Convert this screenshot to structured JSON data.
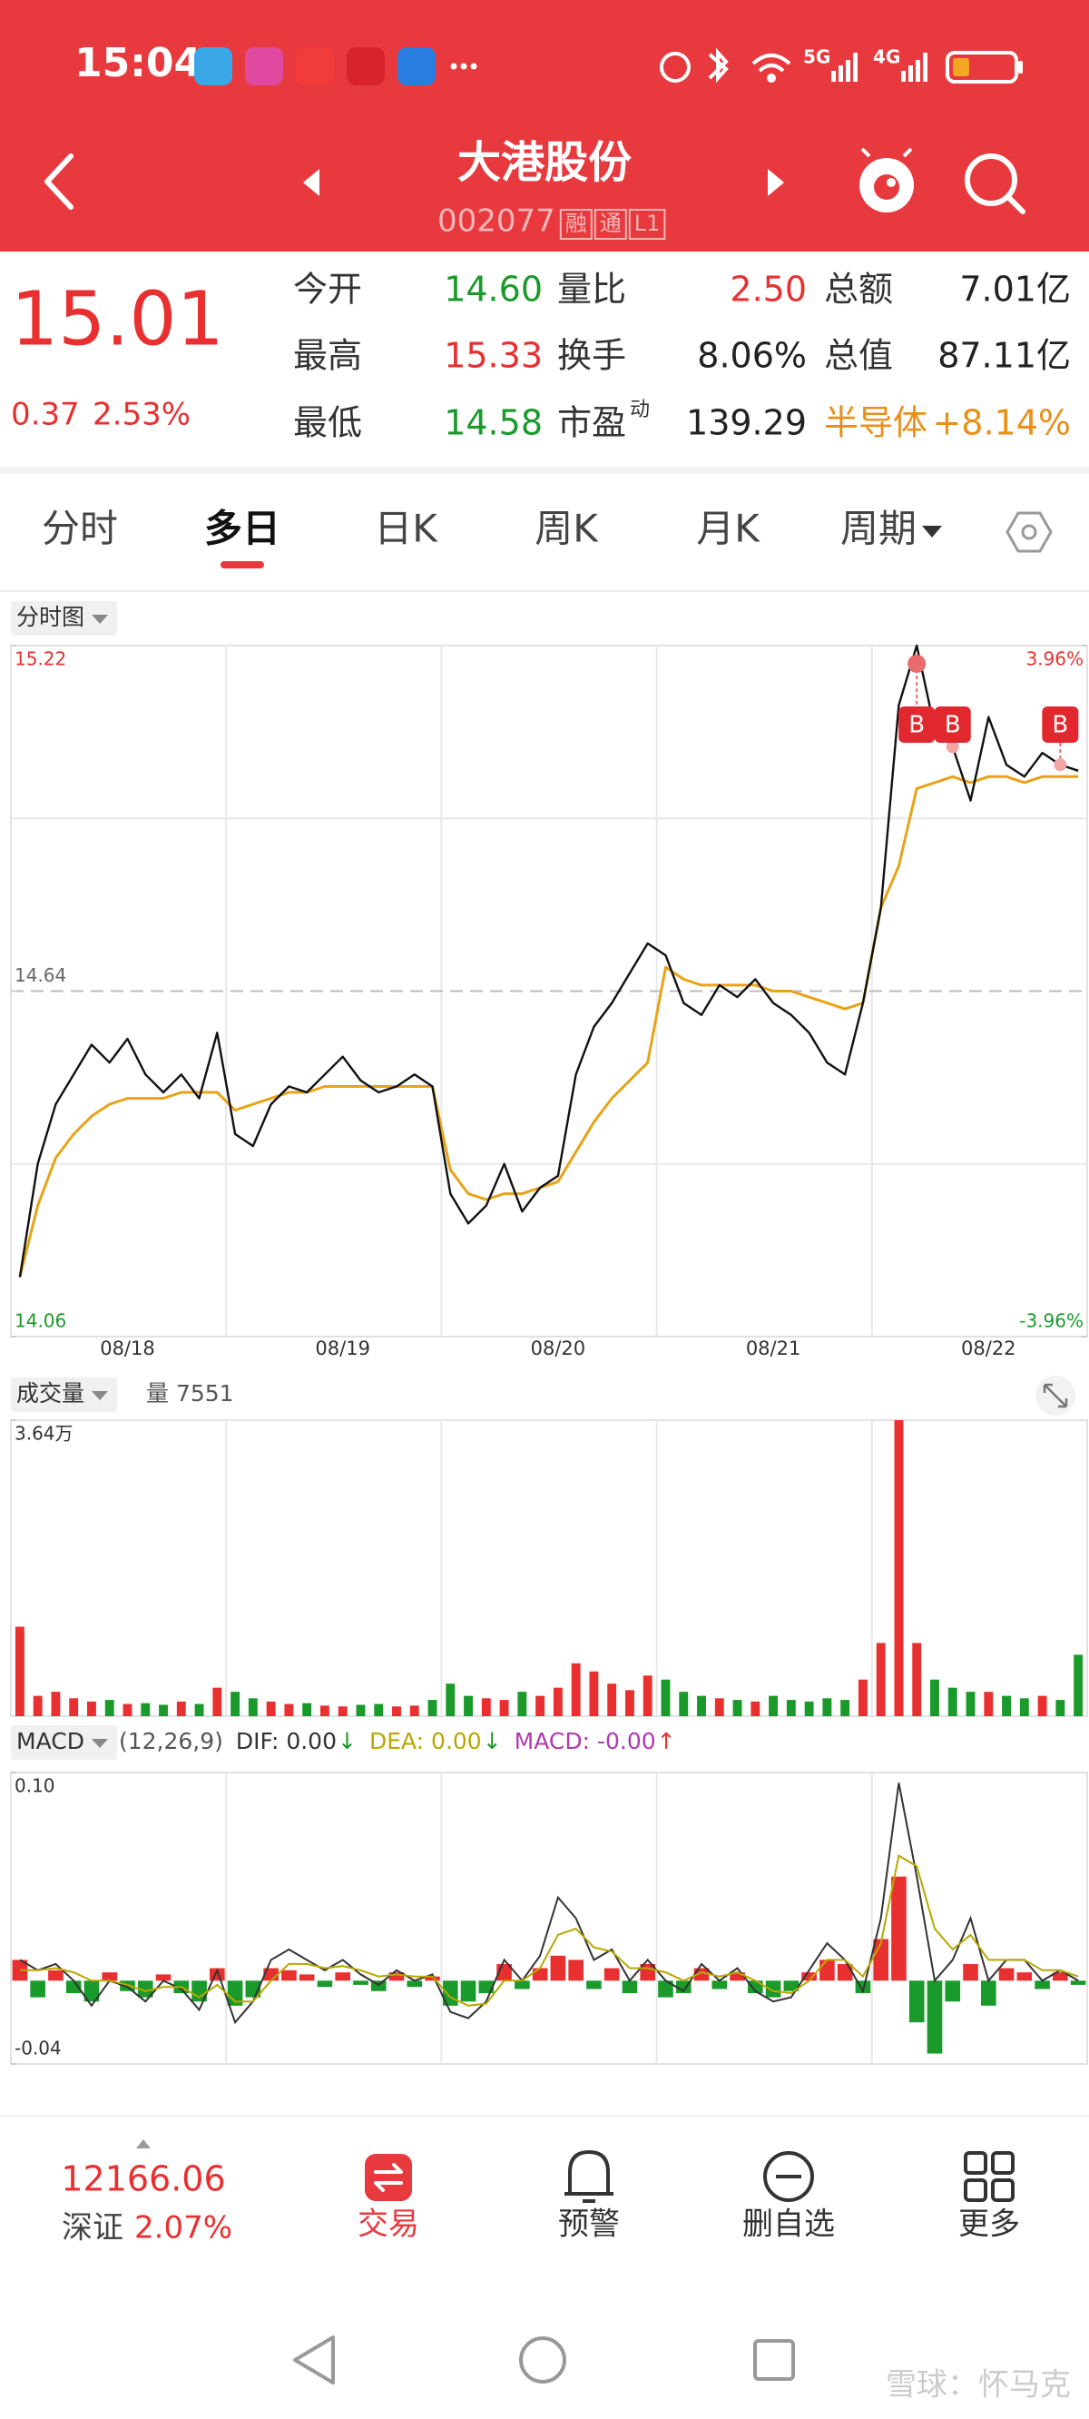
{
  "status_bar": {
    "time": "15:04",
    "network": [
      "5G",
      "4G"
    ]
  },
  "header": {
    "title": "大港股份",
    "code": "002077",
    "badges": [
      "融",
      "通",
      "L1"
    ]
  },
  "quote": {
    "price": "15.01",
    "change": "0.37",
    "change_pct": "2.53%",
    "color": "#e93030",
    "fields": [
      [
        {
          "label": "今开",
          "value": "14.60",
          "color": "#1a9a2a"
        },
        {
          "label": "量比",
          "value": "2.50",
          "color": "#e93030"
        },
        {
          "label": "总额",
          "value": "7.01亿",
          "color": "#222222"
        }
      ],
      [
        {
          "label": "最高",
          "value": "15.33",
          "color": "#e93030"
        },
        {
          "label": "换手",
          "value": "8.06%",
          "color": "#222222"
        },
        {
          "label": "总值",
          "value": "87.11亿",
          "color": "#222222"
        }
      ],
      [
        {
          "label": "最低",
          "value": "14.58",
          "color": "#1a9a2a"
        },
        {
          "label": "市盈",
          "sup": "动",
          "value": "139.29",
          "color": "#222222"
        },
        {
          "label": "半导体",
          "value": "+8.14%",
          "color": "#e8901a",
          "label_color": "#e8901a"
        }
      ]
    ]
  },
  "tabs": {
    "items": [
      "分时",
      "多日",
      "日K",
      "周K",
      "月K",
      "周期"
    ],
    "active": 1
  },
  "chart_data": [
    {
      "type": "line",
      "title": "分时图",
      "categories": [
        null,
        null,
        null,
        null,
        null,
        null,
        "08/18",
        null,
        null,
        null,
        null,
        null,
        null,
        null,
        null,
        null,
        null,
        null,
        "08/19",
        null,
        null,
        null,
        null,
        null,
        null,
        null,
        null,
        null,
        null,
        null,
        "08/20",
        null,
        null,
        null,
        null,
        null,
        null,
        null,
        null,
        null,
        null,
        null,
        "08/21",
        null,
        null,
        null,
        null,
        null,
        null,
        null,
        null,
        null,
        null,
        null,
        "08/22",
        null,
        null,
        null,
        null,
        null
      ],
      "series": [
        {
          "color": "#111111",
          "values": [
            14.16,
            14.35,
            14.45,
            14.5,
            14.55,
            14.52,
            14.56,
            14.5,
            14.47,
            14.5,
            14.46,
            14.57,
            14.4,
            14.38,
            14.45,
            14.48,
            14.47,
            14.5,
            14.53,
            14.49,
            14.47,
            14.48,
            14.5,
            14.48,
            14.3,
            14.25,
            14.28,
            14.35,
            14.27,
            14.31,
            14.33,
            14.5,
            14.58,
            14.62,
            14.67,
            14.72,
            14.7,
            14.62,
            14.6,
            14.65,
            14.63,
            14.66,
            14.62,
            14.6,
            14.57,
            14.52,
            14.5,
            14.62,
            14.78,
            15.12,
            15.22,
            15.08,
            15.05,
            14.96,
            15.1,
            15.02,
            15.0,
            15.04,
            15.02,
            15.01
          ]
        },
        {
          "color": "#e8a317",
          "values": [
            14.16,
            14.28,
            14.36,
            14.4,
            14.43,
            14.45,
            14.46,
            14.46,
            14.46,
            14.47,
            14.47,
            14.47,
            14.44,
            14.45,
            14.46,
            14.47,
            14.47,
            14.48,
            14.48,
            14.48,
            14.48,
            14.48,
            14.48,
            14.48,
            14.34,
            14.3,
            14.29,
            14.3,
            14.3,
            14.31,
            14.32,
            14.37,
            14.42,
            14.46,
            14.49,
            14.52,
            14.68,
            14.66,
            14.65,
            14.65,
            14.65,
            14.65,
            14.64,
            14.64,
            14.63,
            14.62,
            14.61,
            14.62,
            14.78,
            14.85,
            14.98,
            14.99,
            15.0,
            14.99,
            15.0,
            15.0,
            14.99,
            15.0,
            15.0,
            15.0
          ]
        }
      ],
      "ylim": [
        14.06,
        15.22
      ],
      "yticks": [
        14.06,
        14.64,
        15.22
      ],
      "ytick_colors": [
        "#1a9a2a",
        "#666666",
        "#e93030"
      ],
      "y2lim": [
        -3.96,
        3.96
      ],
      "y2ticks": [
        {
          "value": -3.96,
          "label": "-3.96%"
        },
        {
          "value": 3.96,
          "label": "3.96%"
        }
      ],
      "y2tick_colors": [
        "#1a9a2a",
        "#e93030"
      ],
      "markers": [
        {
          "index": 50,
          "label": "B"
        },
        {
          "index": 52,
          "label": "B"
        },
        {
          "index": 58,
          "label": "B"
        }
      ],
      "grid": true
    },
    {
      "type": "bar",
      "title": "成交量",
      "readout": "量 7551",
      "values": [
        11000,
        2500,
        3000,
        2200,
        1800,
        2000,
        1500,
        1600,
        1400,
        1800,
        1500,
        3500,
        3000,
        2200,
        1800,
        1500,
        1600,
        1300,
        1200,
        1400,
        1500,
        1200,
        1300,
        2000,
        4000,
        2500,
        2200,
        2000,
        3000,
        2500,
        3500,
        6500,
        5500,
        4000,
        3200,
        5000,
        4500,
        3000,
        2500,
        2200,
        2000,
        1800,
        2500,
        2000,
        1800,
        2200,
        2000,
        4500,
        9000,
        36400,
        9000,
        4500,
        3500,
        3000,
        3000,
        2500,
        2200,
        2500,
        2000,
        7551
      ],
      "ylim": [
        0,
        36400
      ],
      "yticks": [
        {
          "value": 36400,
          "label": "3.64万"
        }
      ],
      "up_color": "#e93030",
      "down_color": "#1a9a2a",
      "grid": true
    },
    {
      "type": "macd",
      "title": "MACD",
      "params": "(12,26,9)",
      "series": [
        {
          "name": "DIF: 0.00",
          "arrow": "↓",
          "arrow_color": "#1a9a2a",
          "color": "#333333",
          "values": [
            0.01,
            0.005,
            0.008,
            0.0,
            -0.012,
            0.0,
            -0.003,
            -0.01,
            0.0,
            -0.004,
            -0.014,
            0.005,
            -0.02,
            -0.01,
            0.01,
            0.015,
            0.01,
            0.005,
            0.01,
            0.003,
            -0.002,
            0.005,
            0.0,
            0.003,
            -0.015,
            -0.018,
            -0.01,
            0.01,
            0.0,
            0.012,
            0.04,
            0.03,
            0.01,
            0.015,
            0.0,
            0.01,
            0.0,
            -0.005,
            0.008,
            0.0,
            0.006,
            -0.005,
            -0.01,
            -0.008,
            0.005,
            0.018,
            0.01,
            -0.005,
            0.03,
            0.095,
            0.05,
            0.0,
            0.01,
            0.03,
            0.0,
            0.01,
            0.01,
            0.0,
            0.005,
            0.0
          ]
        },
        {
          "name": "DEA: 0.00",
          "arrow": "↓",
          "arrow_color": "#1a9a2a",
          "color": "#b8a800",
          "values": [
            0.005,
            0.005,
            0.006,
            0.004,
            0.0,
            0.0,
            -0.002,
            -0.005,
            -0.003,
            -0.003,
            -0.008,
            -0.002,
            -0.01,
            -0.01,
            0.0,
            0.008,
            0.008,
            0.006,
            0.007,
            0.005,
            0.002,
            0.003,
            0.002,
            0.002,
            -0.008,
            -0.012,
            -0.011,
            0.0,
            0.0,
            0.006,
            0.022,
            0.025,
            0.016,
            0.014,
            0.006,
            0.006,
            0.004,
            0.0,
            0.004,
            0.002,
            0.004,
            0.0,
            -0.005,
            -0.006,
            0.0,
            0.01,
            0.01,
            0.002,
            0.018,
            0.06,
            0.055,
            0.025,
            0.015,
            0.022,
            0.01,
            0.01,
            0.01,
            0.005,
            0.005,
            0.002
          ]
        },
        {
          "name": "MACD: -0.00",
          "arrow": "↑",
          "arrow_color": "#e93030",
          "color": "#b03ab0",
          "kind": "bar",
          "values": [
            0.01,
            -0.008,
            0.005,
            -0.006,
            -0.01,
            0.004,
            -0.005,
            -0.008,
            0.003,
            -0.006,
            -0.01,
            0.006,
            -0.012,
            -0.008,
            0.006,
            0.005,
            0.003,
            -0.003,
            0.004,
            -0.002,
            -0.005,
            0.004,
            -0.003,
            0.002,
            -0.012,
            -0.01,
            -0.006,
            0.008,
            -0.004,
            0.006,
            0.012,
            0.01,
            -0.004,
            0.006,
            -0.006,
            0.008,
            -0.008,
            -0.006,
            0.006,
            -0.004,
            0.004,
            -0.006,
            -0.008,
            -0.005,
            0.004,
            0.01,
            0.008,
            -0.006,
            0.02,
            0.05,
            -0.02,
            -0.035,
            -0.01,
            0.008,
            -0.012,
            0.006,
            0.004,
            -0.004,
            0.004,
            -0.002
          ]
        }
      ],
      "ylim": [
        -0.04,
        0.1
      ],
      "yticks": [
        {
          "value": 0.1,
          "label": "0.10"
        },
        -0.04
      ],
      "up_color": "#e93030",
      "down_color": "#1a9a2a",
      "grid": true
    }
  ],
  "bottom_bar": {
    "index_value": "12166.06",
    "index_name": "深证",
    "index_change": "2.07%",
    "items": [
      "交易",
      "预警",
      "删自选",
      "更多"
    ]
  },
  "watermark": "雪球：怀马克"
}
